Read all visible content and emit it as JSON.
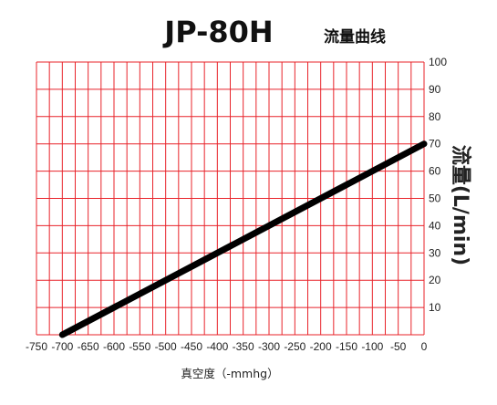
{
  "chart_data": {
    "type": "line",
    "title": "JP-80H",
    "subtitle": "流量曲线",
    "xlabel": "真空度（-mmhg）",
    "ylabel": "流量(L/min)",
    "x_ticks": [
      "-750",
      "-700",
      "-650",
      "-600",
      "-550",
      "-500",
      "-450",
      "-400",
      "-350",
      "-300",
      "-250",
      "-200",
      "-150",
      "-100",
      "-50",
      "0"
    ],
    "y_ticks": [
      "10",
      "20",
      "30",
      "40",
      "50",
      "60",
      "70",
      "80",
      "90",
      "100"
    ],
    "xlim": [
      -750,
      0
    ],
    "ylim": [
      0,
      100
    ],
    "grid": true,
    "series": [
      {
        "x": [
          -700,
          0
        ],
        "y": [
          0,
          70
        ]
      }
    ],
    "colors": {
      "grid": "#e8232a",
      "line": "#000000"
    }
  }
}
